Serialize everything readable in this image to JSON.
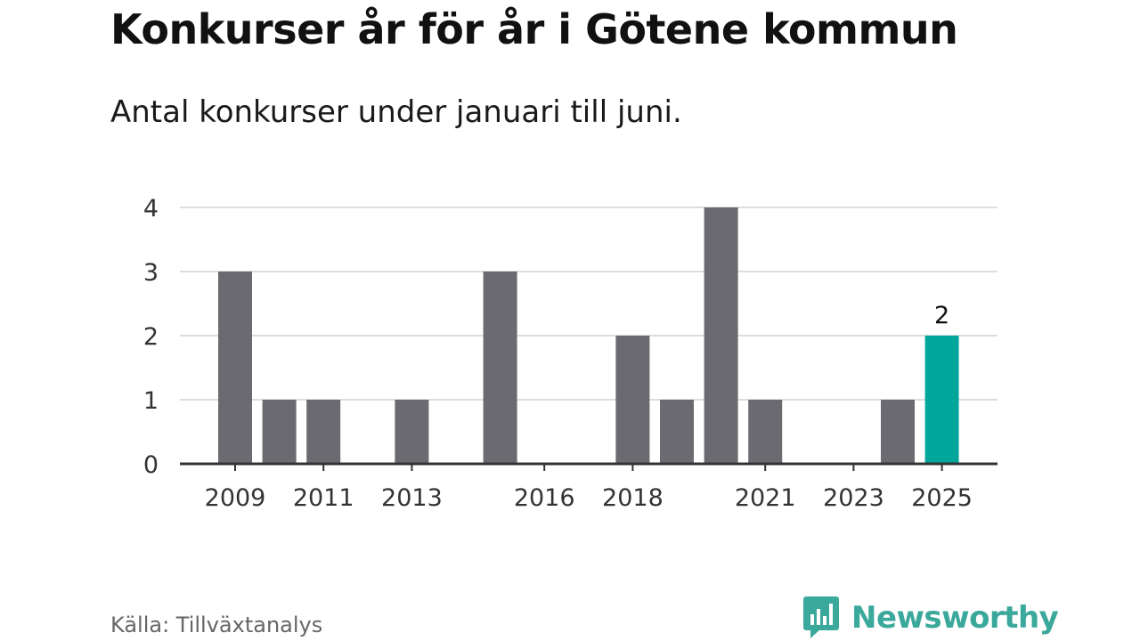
{
  "title": "Konkurser år för år i Götene kommun",
  "subtitle": "Antal konkurser under januari till juni.",
  "source": "Källa: Tillväxtanalys",
  "brand": "Newsworthy",
  "colors": {
    "bar": "#6b6a70",
    "highlight": "#00a69a",
    "grid": "#dddddd",
    "axis": "#333333",
    "brand": "#3aa89a"
  },
  "icons": {
    "brand_logo": "bar-chart-speech-bubble-icon"
  },
  "chart_data": {
    "type": "bar",
    "categories": [
      "2009",
      "2010",
      "2011",
      "2012",
      "2013",
      "2014",
      "2015",
      "2016",
      "2017",
      "2018",
      "2019",
      "2020",
      "2021",
      "2022",
      "2023",
      "2024",
      "2025"
    ],
    "values": [
      3,
      1,
      1,
      0,
      1,
      0,
      3,
      0,
      0,
      2,
      1,
      4,
      1,
      0,
      0,
      1,
      2
    ],
    "x_tick_labels": [
      "2009",
      "2011",
      "2013",
      "2016",
      "2018",
      "2021",
      "2023",
      "2025"
    ],
    "y_ticks": [
      0,
      1,
      2,
      3,
      4
    ],
    "ylim": [
      0,
      4
    ],
    "highlight_category": "2025",
    "data_labels": [
      {
        "category": "2025",
        "text": "2"
      }
    ],
    "grid": true,
    "legend": "none",
    "xlabel": "",
    "ylabel": ""
  }
}
